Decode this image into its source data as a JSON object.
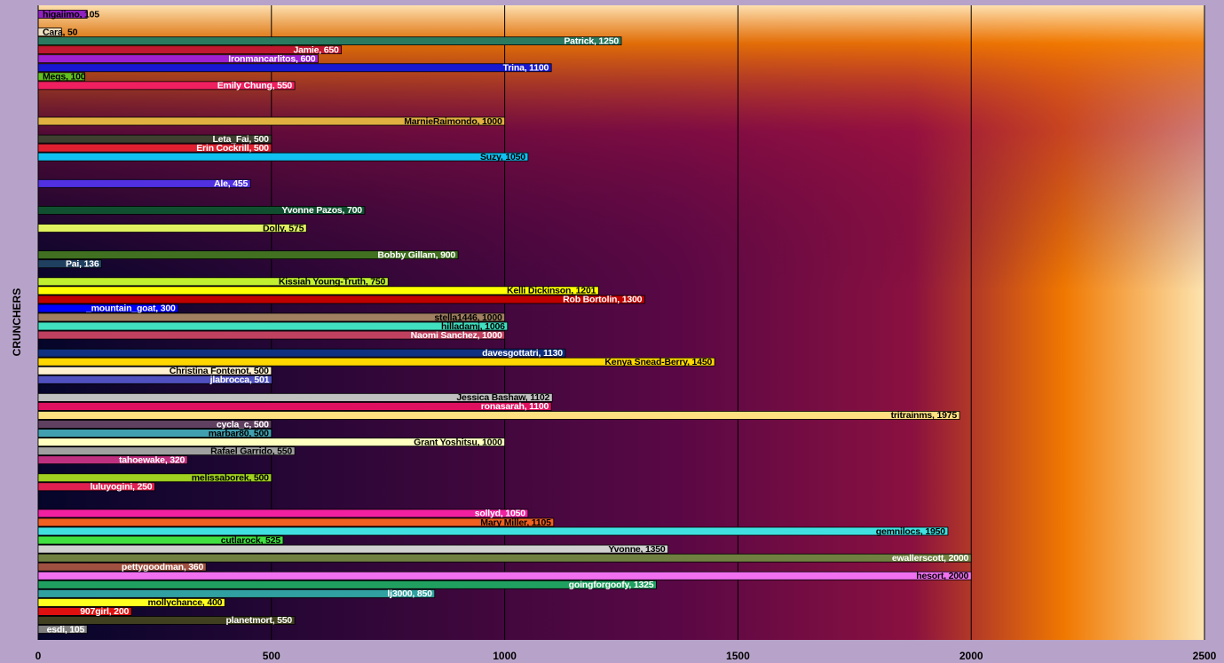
{
  "chart_data": {
    "type": "bar",
    "orientation": "horizontal",
    "y_label": "CRUNCHERS",
    "values": [
      105,
      null,
      50,
      1250,
      650,
      600,
      1100,
      100,
      550,
      null,
      null,
      null,
      1000,
      null,
      500,
      500,
      1050,
      null,
      null,
      455,
      null,
      null,
      700,
      null,
      575,
      null,
      null,
      900,
      136,
      null,
      750,
      1201,
      1300,
      300,
      1000,
      1006,
      1000,
      null,
      1130,
      1450,
      500,
      501,
      null,
      1102,
      1100,
      1975,
      500,
      500,
      1000,
      550,
      320,
      null,
      500,
      250,
      null,
      null,
      1050,
      1105,
      1950,
      525,
      1350,
      2000,
      360,
      2000,
      1325,
      850,
      400,
      200,
      550,
      105
    ],
    "value_labels": [
      "higaiimo, 105",
      null,
      "Cara, 50",
      "Patrick, 1250",
      "Jamie, 650",
      "Ironmancarlitos, 600",
      "Trina, 1100",
      "Megs, 100",
      "Emily Chung, 550",
      null,
      null,
      null,
      "MarnieRaimondo, 1000",
      null,
      "Leta_Fai, 500",
      "Erin Cockrill, 500",
      "Suzy, 1050",
      null,
      null,
      "Ale, 455",
      null,
      null,
      "Yvonne Pazos, 700",
      null,
      "Dolly, 575",
      null,
      null,
      "Bobby Gillam, 900",
      "Pai, 136",
      null,
      "Kissiah Young-Truth, 750",
      "Kelli Dickinson, 1201",
      "Rob Bortolin, 1300",
      "_mountain_goat, 300",
      "stella1446, 1000",
      "hilladamj, 1006",
      "Naomi Sanchez, 1000",
      null,
      "davesgottatri, 1130",
      "Kenya Snead-Berry, 1450",
      "Christina Fontenot, 500",
      "jlabrocca, 501",
      null,
      "Jessica Bashaw, 1102",
      "ronasarah, 1100",
      "tritrainms, 1975",
      "cycla_c, 500",
      "marbar80, 500",
      "Grant Yoshitsu, 1000",
      "Rafael Garrido, 550",
      "tahoewake, 320",
      null,
      "melissaborek, 500",
      "luluyogini, 250",
      null,
      null,
      "sollyd, 1050",
      "Mary Miller, 1105",
      "gemnilocs, 1950",
      "cutlarock, 525",
      "Yvonne, 1350",
      "ewallerscott, 2000",
      "pettygoodman, 360",
      "hesort, 2000",
      "goingforgoofy, 1325",
      "lj3000, 850",
      "mollychance, 400",
      "907girl, 200",
      "planetmort, 550",
      "esdi, 105"
    ],
    "colors": [
      "#9020c0",
      null,
      "#f0e0c0",
      "#2a7a60",
      "#c01830",
      "#a020d0",
      "#1818d0",
      "#60c020",
      "#f02060",
      null,
      null,
      null,
      "#e0b040",
      null,
      "#404030",
      "#e02030",
      "#10c0f0",
      null,
      null,
      "#5030e0",
      null,
      null,
      "#105030",
      null,
      "#e0f060",
      null,
      null,
      "#407020",
      "#204060",
      null,
      "#c0f030",
      "#ffff00",
      "#c00000",
      "#0000ff",
      "#a08060",
      "#40e0c0",
      "#c04060",
      null,
      "#103080",
      "#ffd700",
      "#fff0d0",
      "#5050c0",
      null,
      "#c0c0c0",
      "#e01060",
      "#ffe080",
      "#604060",
      "#40a0b0",
      "#ffffc0",
      "#a0a0a0",
      "#c03080",
      null,
      "#a0d020",
      "#e02050",
      null,
      null,
      "#f020a0",
      "#f06020",
      "#40e0e0",
      "#40e040",
      "#d0d0d0",
      "#708040",
      "#a05040",
      "#f070f0",
      "#20a060",
      "#30a0a0",
      "#ffff20",
      "#e01010",
      "#404020",
      "#808080"
    ],
    "xlim": [
      0,
      2500
    ],
    "xticks": [
      0,
      500,
      1000,
      1500,
      2000,
      2500
    ],
    "grid": true
  }
}
